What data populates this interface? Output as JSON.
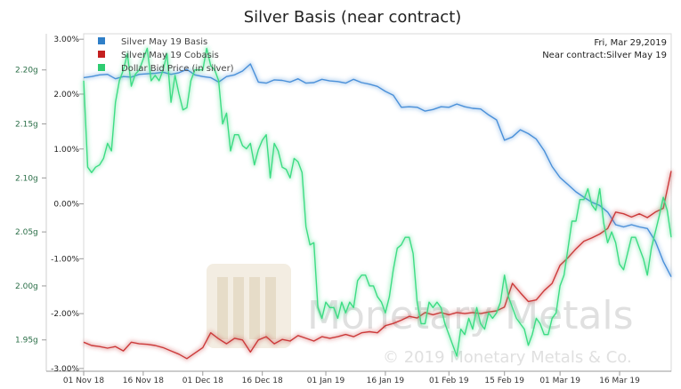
{
  "chart_data": {
    "type": "line",
    "title": "Silver Basis (near contract)",
    "date_label": "Fri, Mar 29,2019",
    "near_contract_label": "Near contract:Silver May 19",
    "watermark": {
      "logo_text": "Monetary Metals",
      "copyright": "© 2019 Monetary Metals & Co."
    },
    "x_ticks": [
      "01 Nov 18",
      "16 Nov 18",
      "01 Dec 18",
      "16 Dec 18",
      "01 Jan 19",
      "16 Jan 19",
      "01 Feb 19",
      "15 Feb 19",
      "01 Mar 19",
      "16 Mar 19"
    ],
    "x_tick_days": [
      0,
      15,
      30,
      45,
      61,
      76,
      92,
      106,
      120,
      135
    ],
    "x_range_days": [
      0,
      148
    ],
    "y_left": {
      "ticks": [
        "3.00%",
        "2.00%",
        "1.00%",
        "0.00%",
        "-1.00%",
        "-2.00%",
        "-3.00%"
      ],
      "tick_values": [
        3,
        2,
        1,
        0,
        -1,
        -2,
        -3
      ],
      "range": [
        -3.05,
        3.1
      ],
      "unit": "%"
    },
    "y_right": {
      "ticks": [
        "2.20g",
        "2.15g",
        "2.10g",
        "2.05g",
        "2.00g",
        "1.95g"
      ],
      "tick_values": [
        2.2,
        2.15,
        2.1,
        2.05,
        2.0,
        1.95
      ],
      "range": [
        1.921,
        2.2335
      ],
      "unit": "g"
    },
    "grid": false,
    "legend_position": "top-left",
    "series": [
      {
        "name": "Silver May 19 Basis",
        "axis": "left",
        "color": "#4a90d9",
        "x": [
          0,
          2,
          4,
          6,
          8,
          10,
          12,
          14,
          16,
          18,
          20,
          22,
          24,
          26,
          28,
          30,
          32,
          34,
          36,
          38,
          40,
          42,
          44,
          46,
          48,
          50,
          52,
          54,
          56,
          58,
          60,
          62,
          64,
          66,
          68,
          70,
          72,
          74,
          76,
          78,
          80,
          82,
          84,
          86,
          88,
          90,
          92,
          94,
          96,
          98,
          100,
          102,
          104,
          106,
          108,
          110,
          112,
          114,
          116,
          118,
          120,
          122,
          124,
          126,
          128,
          130,
          132,
          134,
          136,
          138,
          140,
          142,
          144,
          146,
          148
        ],
        "values": [
          2.3,
          2.32,
          2.35,
          2.36,
          2.28,
          2.32,
          2.31,
          2.36,
          2.37,
          2.38,
          2.4,
          2.36,
          2.39,
          2.45,
          2.35,
          2.32,
          2.3,
          2.22,
          2.32,
          2.35,
          2.42,
          2.55,
          2.22,
          2.2,
          2.26,
          2.25,
          2.22,
          2.28,
          2.2,
          2.21,
          2.27,
          2.24,
          2.23,
          2.2,
          2.27,
          2.21,
          2.18,
          2.14,
          2.05,
          1.98,
          1.76,
          1.77,
          1.76,
          1.69,
          1.72,
          1.77,
          1.76,
          1.82,
          1.77,
          1.74,
          1.73,
          1.62,
          1.53,
          1.16,
          1.22,
          1.35,
          1.28,
          1.18,
          0.97,
          0.68,
          0.48,
          0.35,
          0.22,
          0.12,
          0.03,
          -0.03,
          -0.15,
          -0.38,
          -0.42,
          -0.38,
          -0.42,
          -0.45,
          -0.68,
          -1.05,
          -1.33
        ]
      },
      {
        "name": "Silver May 19 Cobasis",
        "axis": "left",
        "color": "#cc3a3a",
        "x": [
          0,
          2,
          4,
          6,
          8,
          10,
          12,
          14,
          16,
          18,
          20,
          22,
          24,
          26,
          28,
          30,
          32,
          34,
          36,
          38,
          40,
          42,
          44,
          46,
          48,
          50,
          52,
          54,
          56,
          58,
          60,
          62,
          64,
          66,
          68,
          70,
          72,
          74,
          76,
          78,
          80,
          82,
          84,
          86,
          88,
          90,
          92,
          94,
          96,
          98,
          100,
          102,
          104,
          106,
          108,
          110,
          112,
          114,
          116,
          118,
          120,
          122,
          124,
          126,
          128,
          130,
          132,
          134,
          136,
          138,
          140,
          142,
          144,
          146,
          148
        ],
        "values": [
          -2.52,
          -2.58,
          -2.6,
          -2.63,
          -2.6,
          -2.68,
          -2.52,
          -2.55,
          -2.56,
          -2.58,
          -2.62,
          -2.68,
          -2.74,
          -2.82,
          -2.72,
          -2.62,
          -2.35,
          -2.46,
          -2.55,
          -2.45,
          -2.48,
          -2.7,
          -2.48,
          -2.42,
          -2.55,
          -2.47,
          -2.5,
          -2.4,
          -2.45,
          -2.5,
          -2.42,
          -2.45,
          -2.42,
          -2.38,
          -2.42,
          -2.35,
          -2.33,
          -2.35,
          -2.22,
          -2.18,
          -2.12,
          -2.05,
          -2.08,
          -1.98,
          -2.02,
          -1.98,
          -2.02,
          -1.98,
          -2.0,
          -1.98,
          -2.0,
          -1.97,
          -1.95,
          -1.88,
          -1.45,
          -1.62,
          -1.78,
          -1.75,
          -1.58,
          -1.45,
          -1.12,
          -0.98,
          -0.82,
          -0.68,
          -0.62,
          -0.55,
          -0.45,
          -0.15,
          -0.18,
          -0.24,
          -0.18,
          -0.25,
          -0.15,
          -0.08,
          0.6
        ]
      },
      {
        "name": "Dollar Bid Price (in silver)",
        "axis": "right",
        "color": "#3ddc84",
        "x": [
          0,
          1,
          2,
          3,
          4,
          5,
          6,
          7,
          8,
          9,
          10,
          11,
          12,
          13,
          14,
          15,
          16,
          17,
          18,
          19,
          20,
          21,
          22,
          23,
          24,
          25,
          26,
          27,
          28,
          29,
          30,
          31,
          32,
          33,
          34,
          35,
          36,
          37,
          38,
          39,
          40,
          41,
          42,
          43,
          44,
          45,
          46,
          47,
          48,
          49,
          50,
          51,
          52,
          53,
          54,
          55,
          56,
          57,
          58,
          59,
          60,
          61,
          62,
          63,
          64,
          65,
          66,
          67,
          68,
          69,
          70,
          71,
          72,
          73,
          74,
          75,
          76,
          77,
          78,
          79,
          80,
          81,
          82,
          83,
          84,
          85,
          86,
          87,
          88,
          89,
          90,
          91,
          92,
          93,
          94,
          95,
          96,
          97,
          98,
          99,
          100,
          101,
          102,
          103,
          104,
          105,
          106,
          107,
          108,
          109,
          110,
          111,
          112,
          113,
          114,
          115,
          116,
          117,
          118,
          119,
          120,
          121,
          122,
          123,
          124,
          125,
          126,
          127,
          128,
          129,
          130,
          131,
          132,
          133,
          134,
          135,
          136,
          137,
          138,
          139,
          140,
          141,
          142,
          143,
          144,
          145,
          146,
          147,
          148
        ],
        "values": [
          2.19,
          2.11,
          2.105,
          2.11,
          2.112,
          2.118,
          2.132,
          2.125,
          2.17,
          2.19,
          2.2,
          2.215,
          2.185,
          2.196,
          2.2,
          2.21,
          2.22,
          2.19,
          2.195,
          2.19,
          2.2,
          2.215,
          2.17,
          2.195,
          2.178,
          2.163,
          2.165,
          2.19,
          2.2,
          2.2,
          2.2,
          2.22,
          2.204,
          2.2,
          2.19,
          2.15,
          2.16,
          2.125,
          2.14,
          2.14,
          2.13,
          2.127,
          2.132,
          2.112,
          2.126,
          2.135,
          2.14,
          2.1,
          2.132,
          2.125,
          2.11,
          2.108,
          2.1,
          2.118,
          2.115,
          2.105,
          2.055,
          2.038,
          2.04,
          1.98,
          1.97,
          1.985,
          1.98,
          1.98,
          1.97,
          1.985,
          1.975,
          1.985,
          1.98,
          2.005,
          2.01,
          2.01,
          2.0,
          2.0,
          1.99,
          1.985,
          1.975,
          1.99,
          2.015,
          2.035,
          2.038,
          2.045,
          2.045,
          2.03,
          1.985,
          1.965,
          1.965,
          1.985,
          1.98,
          1.985,
          1.98,
          1.965,
          1.955,
          1.945,
          1.935,
          1.96,
          1.955,
          1.97,
          1.96,
          1.98,
          1.965,
          1.96,
          1.975,
          1.97,
          1.975,
          1.985,
          2.01,
          1.99,
          1.98,
          1.97,
          1.965,
          1.96,
          1.945,
          1.955,
          1.97,
          1.965,
          1.955,
          1.955,
          1.97,
          1.975,
          2.0,
          2.01,
          2.035,
          2.06,
          2.06,
          2.08,
          2.08,
          2.09,
          2.075,
          2.07,
          2.09,
          2.058,
          2.04,
          2.05,
          2.04,
          2.02,
          2.015,
          2.03,
          2.045,
          2.045,
          2.035,
          2.025,
          2.01,
          2.035,
          2.05,
          2.065,
          2.082,
          2.07,
          2.045
        ]
      }
    ]
  }
}
